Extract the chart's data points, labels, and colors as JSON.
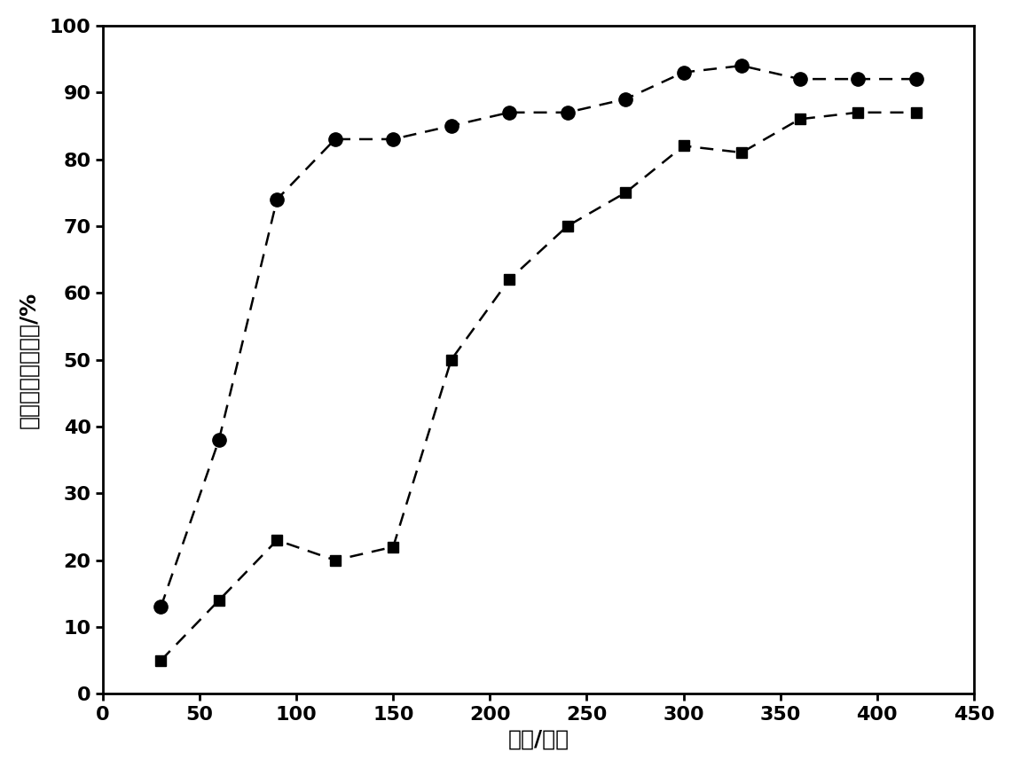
{
  "circle_series": {
    "x": [
      30,
      60,
      90,
      120,
      150,
      180,
      210,
      240,
      270,
      300,
      330,
      360,
      390,
      420
    ],
    "y": [
      13,
      38,
      74,
      83,
      83,
      85,
      87,
      87,
      89,
      93,
      94,
      92,
      92,
      92
    ]
  },
  "square_series": {
    "x": [
      30,
      60,
      90,
      120,
      150,
      180,
      210,
      240,
      270,
      300,
      330,
      360,
      390,
      420
    ],
    "y": [
      5,
      14,
      23,
      20,
      22,
      50,
      62,
      70,
      75,
      82,
      81,
      86,
      87,
      87
    ]
  },
  "xlabel": "时间/分钟",
  "ylabel": "盐酸四环素去除率/%",
  "xlim": [
    0,
    450
  ],
  "ylim": [
    0,
    100
  ],
  "xticks": [
    0,
    50,
    100,
    150,
    200,
    250,
    300,
    350,
    400,
    450
  ],
  "yticks": [
    0,
    10,
    20,
    30,
    40,
    50,
    60,
    70,
    80,
    90,
    100
  ],
  "line_color": "#000000",
  "background_color": "#ffffff",
  "marker_size_circle": 11,
  "marker_size_square": 9,
  "line_width": 1.8,
  "tick_fontsize": 16,
  "label_fontsize": 18,
  "spine_linewidth": 2.0
}
